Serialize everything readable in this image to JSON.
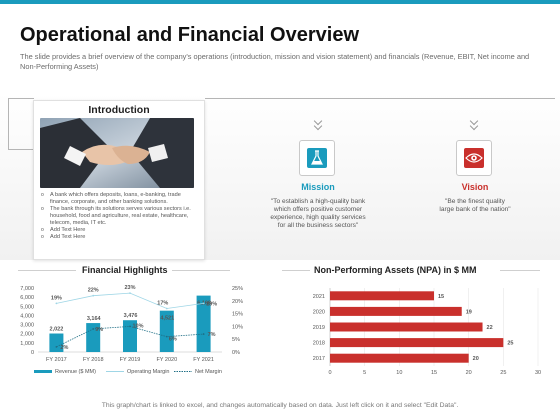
{
  "colors": {
    "accent": "#1a9bbd",
    "brand_red": "#c9302c",
    "bar_blue": "#1a9bbd",
    "npa_red": "#c9302c"
  },
  "header": {
    "title": "Operational and Financial Overview",
    "subtitle": "The slide provides  a brief overview  of the company's operations (introduction,  mission and vision statement) and financials (Revenue,  EBIT, Net income and Non-Performing  Assets)"
  },
  "introduction": {
    "title": "Introduction",
    "image": "handshake-photo",
    "bullets": [
      "A bank which offers deposits, loans, e-banking, trade finance, corporate, and other banking solutions.",
      "The bank through its solutions serves various sectors i.e. household, food and agriculture, real estate, healthcare, telecom, media, IT  etc.",
      "Add Text Here",
      "Add Text Here"
    ]
  },
  "mission": {
    "title": "Mission",
    "icon": "flask-icon",
    "text": "\"To establish a high-quality bank which offers positive customer experience, high quality services for all the business sectors\""
  },
  "vision": {
    "title": "Vision",
    "icon": "eye-icon",
    "text": "\"Be the finest quality large bank of the nation\""
  },
  "financial_highlights": {
    "title": "Financial Highlights",
    "legend": [
      "Revenue ($ MM)",
      "Operating Margin",
      "Net Margin"
    ]
  },
  "npa": {
    "title": "Non-Performing Assets  (NPA) in $ MM"
  },
  "chart_data": [
    {
      "type": "bar",
      "title": "Financial Highlights",
      "categories": [
        "FY 2017",
        "FY 2018",
        "FY 2019",
        "FY 2020",
        "FY 2021"
      ],
      "series": [
        {
          "name": "Revenue ($ MM)",
          "type": "bar",
          "axis": "left",
          "values": [
            2022,
            3164,
            3476,
            4521,
            6168
          ],
          "labels": [
            "2,022",
            "3,164",
            "3,476",
            "4,521",
            "6,168"
          ]
        },
        {
          "name": "Operating Margin",
          "type": "line",
          "axis": "right",
          "values": [
            19,
            22,
            23,
            17,
            19
          ],
          "labels": [
            "19%",
            "22%",
            "23%",
            "17%",
            "19%"
          ]
        },
        {
          "name": "Net Margin",
          "type": "line",
          "axis": "right",
          "values": [
            2,
            9,
            10,
            6,
            7
          ],
          "labels": [
            "2%",
            "9%",
            "10%",
            "6%",
            "7%"
          ]
        }
      ],
      "ylim": [
        0,
        7000
      ],
      "yticks": [
        "0",
        "1,000",
        "2,000",
        "3,000",
        "4,000",
        "5,000",
        "6,000",
        "7,000"
      ],
      "y2lim": [
        0,
        25
      ],
      "y2ticks": [
        "0%",
        "5%",
        "10%",
        "15%",
        "20%",
        "25%"
      ],
      "legend": "bottom"
    },
    {
      "type": "bar",
      "orientation": "horizontal",
      "title": "Non-Performing Assets  (NPA) in $ MM",
      "categories": [
        "2021",
        "2020",
        "2019",
        "2018",
        "2017"
      ],
      "values": [
        15,
        19,
        22,
        25,
        20
      ],
      "xlim": [
        0,
        30
      ],
      "xticks": [
        "0",
        "5",
        "10",
        "15",
        "20",
        "25",
        "30"
      ]
    }
  ],
  "footer": "This graph/chart is linked to excel,  and changes automatically based on data. Just left click on it and select \"Edit Data\"."
}
